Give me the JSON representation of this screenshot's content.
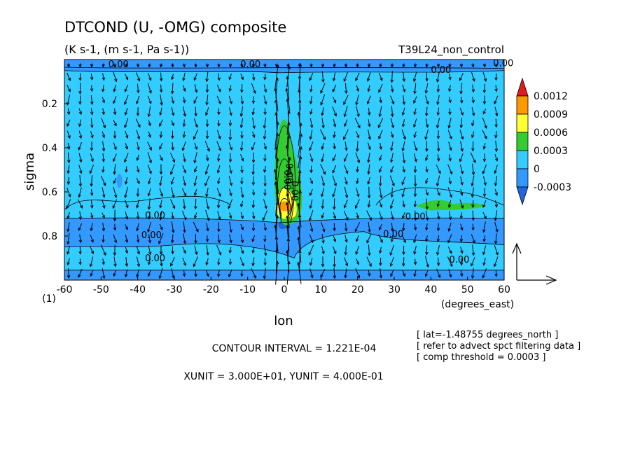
{
  "chart_data": {
    "type": "heatmap",
    "title": "DTCOND (U, -OMG) composite",
    "subtitle": "(K s-1, (m s-1, Pa s-1))",
    "run_label": "T39L24_non_control",
    "xlabel": "lon",
    "xunits": "(degrees_east)",
    "ylabel": "sigma",
    "corner_label": "(1)",
    "x_ticks": [
      "-60",
      "-50",
      "-40",
      "-30",
      "-20",
      "-10",
      "0",
      "10",
      "20",
      "30",
      "40",
      "50",
      "60"
    ],
    "y_ticks": [
      "0.2",
      "0.4",
      "0.6",
      "0.8"
    ],
    "xlim": [
      -60,
      60
    ],
    "ylim": [
      1.0,
      0.0
    ],
    "colorbar": {
      "labels": [
        "0.0012",
        "0.0009",
        "0.0006",
        "0.0003",
        "0",
        "-0.0003"
      ],
      "colors": [
        "#e31a1c",
        "#ff9900",
        "#ffff33",
        "#33cc33",
        "#33ccff",
        "#3399ff",
        "#2266dd"
      ]
    },
    "contour_labels": [
      "0.00",
      "0.00",
      "0.00",
      "0.00",
      "0.00",
      "0.00",
      "0.00",
      "0.00",
      "0.00",
      "0.00",
      "0.00",
      "0.00",
      "0.00"
    ],
    "features": [
      {
        "kind": "positive_column",
        "lon_center": 0,
        "sigma_range": [
          0.25,
          0.75
        ],
        "peak_value": 0.0012,
        "peak_sigma": 0.65
      },
      {
        "kind": "positive_patch",
        "lon_range": [
          40,
          55
        ],
        "sigma": 0.66,
        "value": 0.0003
      },
      {
        "kind": "negative_band",
        "sigma_range": [
          0.72,
          0.85
        ],
        "value": -0.0003
      },
      {
        "kind": "negative_band",
        "sigma_range": [
          0.0,
          0.05
        ],
        "value": -0.0003
      },
      {
        "kind": "negative_band",
        "sigma_range": [
          0.95,
          1.0
        ],
        "value": -0.0003
      }
    ],
    "vector_reference": {
      "xunit": "3.000E+01",
      "yunit": "4.000E-01"
    }
  },
  "info": {
    "contour_interval": "CONTOUR INTERVAL = 1.221E-04",
    "units": "XUNIT = 3.000E+01, YUNIT = 4.000E-01",
    "lat_note": "[ lat=-1.48755 degrees_north ]",
    "filter_note": "[ refer to advect spct filtering data ]",
    "threshold_note": "[ comp threshold = 0.0003 ]"
  }
}
